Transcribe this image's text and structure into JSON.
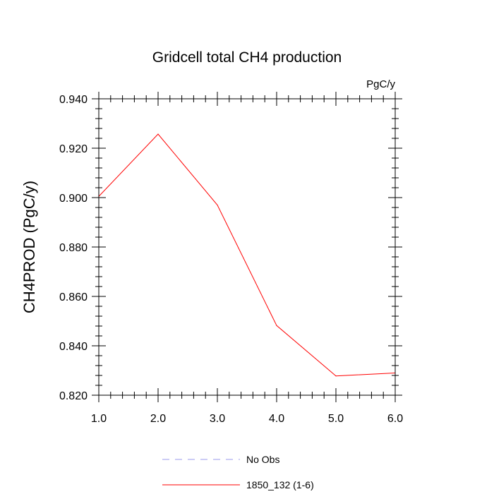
{
  "chart_data": {
    "type": "line",
    "title": "Gridcell total CH4 production",
    "units_label": "PgC/y",
    "xlabel": "",
    "ylabel": "CH4PROD  (PgC/y)",
    "xlim": [
      1.0,
      6.0
    ],
    "ylim": [
      0.82,
      0.94
    ],
    "x_ticks": [
      "1.0",
      "2.0",
      "3.0",
      "4.0",
      "5.0",
      "6.0"
    ],
    "y_ticks": [
      "0.820",
      "0.840",
      "0.860",
      "0.880",
      "0.900",
      "0.920",
      "0.940"
    ],
    "x_tick_values": [
      1,
      2,
      3,
      4,
      5,
      6
    ],
    "y_tick_values": [
      0.82,
      0.84,
      0.86,
      0.88,
      0.9,
      0.92,
      0.94
    ],
    "x_minor_step": 0.2,
    "y_minor_step": 0.004,
    "legend_position": "bottom",
    "series": [
      {
        "name": "1850_132 (1-6)",
        "color": "#ff0000",
        "style": "solid",
        "x": [
          1,
          2,
          3,
          4,
          5,
          6
        ],
        "y": [
          0.9005,
          0.9257,
          0.897,
          0.8482,
          0.8278,
          0.829
        ]
      }
    ],
    "legend": [
      {
        "label": "No Obs",
        "color": "#9a9aee",
        "style": "dashed"
      },
      {
        "label": "1850_132 (1-6)",
        "color": "#ff0000",
        "style": "solid"
      }
    ]
  }
}
